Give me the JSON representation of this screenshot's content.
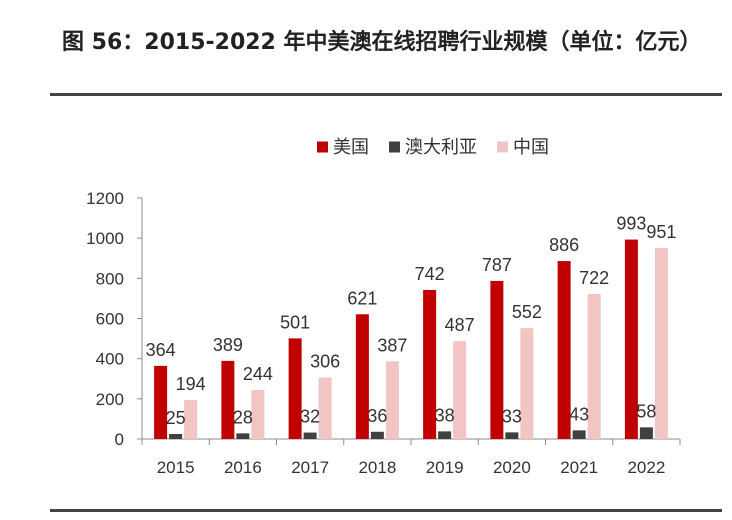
{
  "title": "图 56：2015-2022 年中美澳在线招聘行业规模（单位：亿元）",
  "chart_data": {
    "type": "bar",
    "title": "图 56：2015-2022 年中美澳在线招聘行业规模（单位：亿元）",
    "xlabel": "",
    "ylabel": "",
    "ylim": [
      0,
      1200
    ],
    "yticks": [
      0,
      200,
      400,
      600,
      800,
      1000,
      1200
    ],
    "categories": [
      "2015",
      "2016",
      "2017",
      "2018",
      "2019",
      "2020",
      "2021",
      "2022"
    ],
    "legend_position": "top-center",
    "series": [
      {
        "name": "美国",
        "color": "#c00000",
        "values": [
          364,
          389,
          501,
          621,
          742,
          787,
          886,
          993
        ]
      },
      {
        "name": "澳大利亚",
        "color": "#404040",
        "values": [
          25,
          28,
          32,
          36,
          38,
          33,
          43,
          58
        ]
      },
      {
        "name": "中国",
        "color": "#f2c4c4",
        "values": [
          194,
          244,
          306,
          387,
          487,
          552,
          722,
          951
        ]
      }
    ]
  }
}
